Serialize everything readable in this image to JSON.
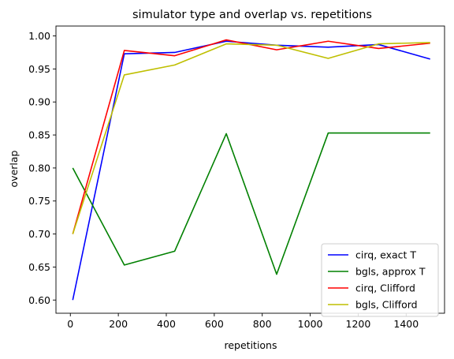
{
  "chart_data": {
    "type": "line",
    "title": "simulator type and overlap vs. repetitions",
    "xlabel": "repetitions",
    "ylabel": "overlap",
    "xlim": [
      -60,
      1560
    ],
    "ylim": [
      0.58,
      1.015
    ],
    "xticks": [
      0,
      200,
      400,
      600,
      800,
      1000,
      1200,
      1400
    ],
    "yticks": [
      0.6,
      0.65,
      0.7,
      0.75,
      0.8,
      0.85,
      0.9,
      0.95,
      1.0
    ],
    "x": [
      10,
      225,
      435,
      650,
      860,
      1075,
      1285,
      1500
    ],
    "series": [
      {
        "name": "cirq, exact T",
        "color": "#0000ff",
        "values": [
          0.6,
          0.973,
          0.975,
          0.992,
          0.986,
          0.983,
          0.987,
          0.965
        ]
      },
      {
        "name": "bgls, approx T",
        "color": "#008000",
        "values": [
          0.8,
          0.653,
          0.674,
          0.852,
          0.639,
          0.853,
          0.853,
          0.853
        ]
      },
      {
        "name": "cirq, Clifford",
        "color": "#ff0000",
        "values": [
          0.7,
          0.978,
          0.97,
          0.994,
          0.979,
          0.992,
          0.981,
          0.989
        ]
      },
      {
        "name": "bgls, Clifford",
        "color": "#bfbf00",
        "values": [
          0.7,
          0.941,
          0.956,
          0.988,
          0.986,
          0.966,
          0.988,
          0.99
        ]
      }
    ],
    "grid": false,
    "legend_position": "lower-right"
  }
}
